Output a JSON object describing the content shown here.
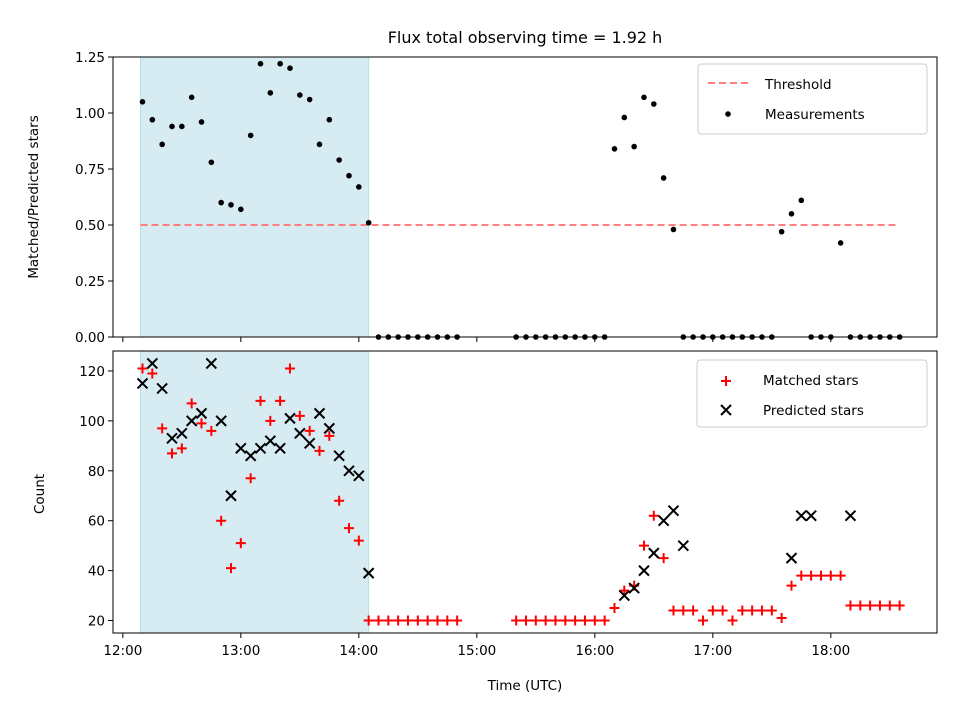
{
  "chart_data": [
    {
      "type": "scatter",
      "title": "Flux total observing time = 1.92 h",
      "xlabel": "",
      "ylabel": "Matched/Predicted stars",
      "xlim": [
        "11:55",
        "18:54"
      ],
      "ylim": [
        0,
        1.25
      ],
      "yticks": [
        "0.00",
        "0.25",
        "0.50",
        "0.75",
        "1.00",
        "1.25"
      ],
      "shaded_span": [
        "12:09",
        "14:05"
      ],
      "threshold": {
        "name": "Threshold",
        "y": 0.5,
        "x_range": [
          "12:09",
          "18:35"
        ],
        "color": "#ff7f7f",
        "style": "dashed"
      },
      "series": [
        {
          "name": "Measurements",
          "color": "#000000",
          "x": [
            "12:10",
            "12:15",
            "12:20",
            "12:25",
            "12:30",
            "12:35",
            "12:40",
            "12:45",
            "12:50",
            "12:55",
            "13:00",
            "13:05",
            "13:10",
            "13:15",
            "13:20",
            "13:25",
            "13:30",
            "13:35",
            "13:40",
            "13:45",
            "13:50",
            "13:55",
            "14:00",
            "14:05",
            "14:10",
            "14:15",
            "14:20",
            "14:25",
            "14:30",
            "14:35",
            "14:40",
            "14:45",
            "14:50",
            "15:20",
            "15:25",
            "15:30",
            "15:35",
            "15:40",
            "15:45",
            "15:50",
            "15:55",
            "16:00",
            "16:05",
            "16:10",
            "16:15",
            "16:20",
            "16:25",
            "16:30",
            "16:35",
            "16:40",
            "16:45",
            "16:50",
            "16:55",
            "17:00",
            "17:05",
            "17:10",
            "17:15",
            "17:20",
            "17:25",
            "17:30",
            "17:35",
            "17:40",
            "17:45",
            "17:50",
            "17:55",
            "18:00",
            "18:05",
            "18:10",
            "18:15",
            "18:20",
            "18:25",
            "18:30",
            "18:35"
          ],
          "y": [
            1.05,
            0.97,
            0.86,
            0.94,
            0.94,
            1.07,
            0.96,
            0.78,
            0.6,
            0.59,
            0.57,
            0.9,
            1.22,
            1.09,
            1.22,
            1.2,
            1.08,
            1.06,
            0.86,
            0.97,
            0.79,
            0.72,
            0.67,
            0.51,
            0,
            0,
            0,
            0,
            0,
            0,
            0,
            0,
            0,
            0,
            0,
            0,
            0,
            0,
            0,
            0,
            0,
            0,
            0,
            0.84,
            0.98,
            0.85,
            1.07,
            1.04,
            0.71,
            0.48,
            0,
            0,
            0,
            0,
            0,
            0,
            0,
            0,
            0,
            0,
            0.47,
            0.55,
            0.61,
            0,
            0,
            0,
            0.42,
            0,
            0,
            0,
            0,
            0,
            0
          ]
        }
      ],
      "legend": {
        "placement": "top-right",
        "entries": [
          "Threshold",
          "Measurements"
        ]
      }
    },
    {
      "type": "scatter",
      "title": "",
      "xlabel": "Time (UTC)",
      "ylabel": "Count",
      "xlim": [
        "11:55",
        "18:54"
      ],
      "ylim": [
        15,
        128
      ],
      "xticks": [
        "12:00",
        "13:00",
        "14:00",
        "15:00",
        "16:00",
        "17:00",
        "18:00"
      ],
      "yticks": [
        "20",
        "40",
        "60",
        "80",
        "100",
        "120"
      ],
      "shaded_span": [
        "12:09",
        "14:05"
      ],
      "series": [
        {
          "name": "Matched stars",
          "color": "#ff0000",
          "marker": "plus",
          "x": [
            "12:10",
            "12:15",
            "12:20",
            "12:25",
            "12:30",
            "12:35",
            "12:40",
            "12:45",
            "12:50",
            "12:55",
            "13:00",
            "13:05",
            "13:10",
            "13:15",
            "13:20",
            "13:25",
            "13:30",
            "13:35",
            "13:40",
            "13:45",
            "13:50",
            "13:55",
            "14:00",
            "14:05",
            "14:10",
            "14:15",
            "14:20",
            "14:25",
            "14:30",
            "14:35",
            "14:40",
            "14:45",
            "14:50",
            "15:20",
            "15:25",
            "15:30",
            "15:35",
            "15:40",
            "15:45",
            "15:50",
            "15:55",
            "16:00",
            "16:05",
            "16:10",
            "16:15",
            "16:20",
            "16:25",
            "16:30",
            "16:35",
            "16:40",
            "16:45",
            "16:50",
            "16:55",
            "17:00",
            "17:05",
            "17:10",
            "17:15",
            "17:20",
            "17:25",
            "17:30",
            "17:35",
            "17:40",
            "17:45",
            "17:50",
            "17:55",
            "18:00",
            "18:05",
            "18:10",
            "18:15",
            "18:20",
            "18:25",
            "18:30",
            "18:35"
          ],
          "y": [
            121,
            119,
            97,
            87,
            89,
            107,
            99,
            96,
            60,
            41,
            51,
            77,
            108,
            100,
            108,
            121,
            102,
            96,
            88,
            94,
            68,
            57,
            52,
            20,
            20,
            20,
            20,
            20,
            20,
            20,
            20,
            20,
            20,
            20,
            20,
            20,
            20,
            20,
            20,
            20,
            20,
            20,
            20,
            25,
            32,
            34,
            50,
            62,
            45,
            24,
            24,
            24,
            20,
            24,
            24,
            20,
            24,
            24,
            24,
            24,
            21,
            34,
            38,
            38,
            38,
            38,
            38,
            26,
            26,
            26,
            26,
            26,
            26
          ]
        },
        {
          "name": "Predicted stars",
          "color": "#000000",
          "marker": "x",
          "x": [
            "12:10",
            "12:15",
            "12:20",
            "12:25",
            "12:30",
            "12:35",
            "12:40",
            "12:45",
            "12:50",
            "12:55",
            "13:00",
            "13:05",
            "13:10",
            "13:15",
            "13:20",
            "13:25",
            "13:30",
            "13:35",
            "13:40",
            "13:45",
            "13:50",
            "13:55",
            "14:00",
            "14:05",
            "16:15",
            "16:20",
            "16:25",
            "16:30",
            "16:35",
            "16:40",
            "16:45",
            "17:40",
            "17:45",
            "17:50",
            "18:10"
          ],
          "y": [
            115,
            123,
            113,
            93,
            95,
            100,
            103,
            123,
            100,
            70,
            89,
            86,
            89,
            92,
            89,
            101,
            95,
            91,
            103,
            97,
            86,
            80,
            78,
            39,
            30,
            33,
            40,
            47,
            60,
            64,
            50,
            45,
            62,
            62,
            62
          ]
        }
      ],
      "legend": {
        "placement": "top-right",
        "entries": [
          "Matched stars",
          "Predicted stars"
        ]
      }
    }
  ]
}
